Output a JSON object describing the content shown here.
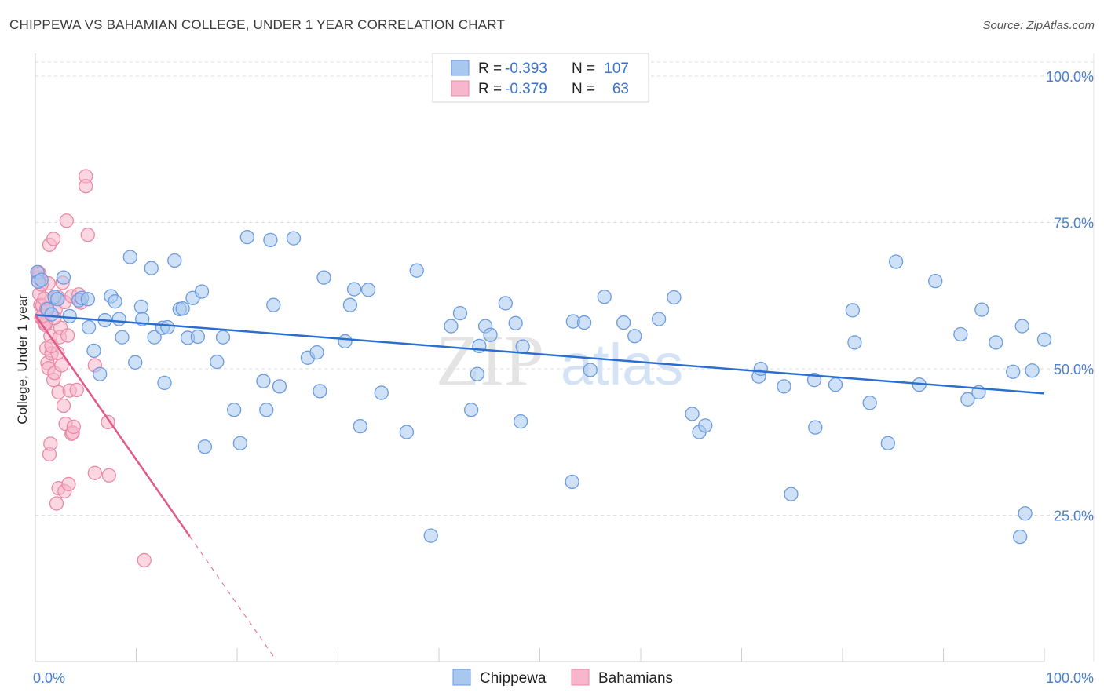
{
  "title": "CHIPPEWA VS BAHAMIAN COLLEGE, UNDER 1 YEAR CORRELATION CHART",
  "source": "Source: ZipAtlas.com",
  "watermark": {
    "zip": "ZIP",
    "atlas": "atlas"
  },
  "colors": {
    "chippewa_fill": "#a8c8f0",
    "chippewa_stroke": "#6b9be0",
    "chippewa_line": "#2a6fd0",
    "bahamian_fill": "#f7b6cb",
    "bahamian_stroke": "#ea89a8",
    "bahamian_line": "#e05a8a",
    "grid": "#dedede",
    "axis_label": "#4a7fd0"
  },
  "legend": [
    {
      "r_label": "R =",
      "r": "-0.393",
      "n_label": "N =",
      "n": "107"
    },
    {
      "r_label": "R =",
      "r": "-0.379",
      "n_label": "N =",
      "n": "63"
    }
  ],
  "chart_data": {
    "type": "scatter",
    "title": "CHIPPEWA VS BAHAMIAN COLLEGE, UNDER 1 YEAR CORRELATION CHART",
    "xlabel": "",
    "ylabel": "College, Under 1 year",
    "xlim": [
      0,
      100
    ],
    "ylim": [
      0,
      100
    ],
    "x_tick_labels": [
      "0.0%",
      "100.0%"
    ],
    "y_ticks": [
      25,
      50,
      75,
      100
    ],
    "y_tick_labels": [
      "25.0%",
      "50.0%",
      "75.0%",
      "100.0%"
    ],
    "grid": true,
    "series": [
      {
        "name": "Chippewa",
        "trend": {
          "x": [
            0,
            100
          ],
          "y": [
            59.2,
            45.8
          ],
          "dashed_x": null
        },
        "points": [
          [
            0.2,
            66.5
          ],
          [
            0.3,
            64.9
          ],
          [
            0.6,
            65.2
          ],
          [
            1.2,
            60.2
          ],
          [
            1.6,
            59.3
          ],
          [
            1.9,
            62.3
          ],
          [
            2.2,
            61.9
          ],
          [
            2.8,
            65.6
          ],
          [
            3.4,
            59
          ],
          [
            4.3,
            61.7
          ],
          [
            4.6,
            62.1
          ],
          [
            5.2,
            61.9
          ],
          [
            5.3,
            57.1
          ],
          [
            5.8,
            53.1
          ],
          [
            6.4,
            49.1
          ],
          [
            6.9,
            58.3
          ],
          [
            7.5,
            62.4
          ],
          [
            7.9,
            61.5
          ],
          [
            8.3,
            58.5
          ],
          [
            8.6,
            55.4
          ],
          [
            9.4,
            69.1
          ],
          [
            9.9,
            51.1
          ],
          [
            10.5,
            60.6
          ],
          [
            10.6,
            58.5
          ],
          [
            11.5,
            67.2
          ],
          [
            11.8,
            55.4
          ],
          [
            12.6,
            57
          ],
          [
            12.8,
            47.6
          ],
          [
            13.1,
            57.1
          ],
          [
            13.8,
            68.5
          ],
          [
            14.3,
            60.2
          ],
          [
            14.6,
            60.3
          ],
          [
            15.1,
            55.3
          ],
          [
            15.6,
            62.1
          ],
          [
            16.1,
            55.5
          ],
          [
            16.5,
            63.2
          ],
          [
            16.8,
            36.7
          ],
          [
            18,
            51.2
          ],
          [
            18.6,
            55.4
          ],
          [
            19.7,
            43
          ],
          [
            20.3,
            37.3
          ],
          [
            21,
            72.5
          ],
          [
            22.6,
            47.9
          ],
          [
            22.9,
            43
          ],
          [
            23.3,
            72
          ],
          [
            23.6,
            60.9
          ],
          [
            24.2,
            47
          ],
          [
            25.6,
            72.3
          ],
          [
            27,
            51.9
          ],
          [
            27.9,
            52.8
          ],
          [
            28.2,
            46.2
          ],
          [
            28.6,
            65.6
          ],
          [
            30.7,
            54.7
          ],
          [
            31.2,
            60.9
          ],
          [
            31.6,
            63.6
          ],
          [
            32.2,
            40.2
          ],
          [
            33,
            63.5
          ],
          [
            34.3,
            45.9
          ],
          [
            36.8,
            39.2
          ],
          [
            37.8,
            66.8
          ],
          [
            39.2,
            21.5
          ],
          [
            41.2,
            57.3
          ],
          [
            42.1,
            59.5
          ],
          [
            43.2,
            43
          ],
          [
            43.8,
            49.1
          ],
          [
            44,
            53.9
          ],
          [
            44.6,
            57.3
          ],
          [
            45.1,
            55.8
          ],
          [
            46.6,
            61.2
          ],
          [
            47.6,
            57.8
          ],
          [
            48.1,
            41
          ],
          [
            48.3,
            53.8
          ],
          [
            53.2,
            30.7
          ],
          [
            53.3,
            58.1
          ],
          [
            54.4,
            57.9
          ],
          [
            55,
            49.8
          ],
          [
            56.4,
            62.3
          ],
          [
            58.3,
            57.9
          ],
          [
            59.4,
            55.6
          ],
          [
            61.8,
            58.5
          ],
          [
            63.3,
            62.2
          ],
          [
            65.1,
            42.3
          ],
          [
            65.8,
            39.2
          ],
          [
            66.4,
            40.3
          ],
          [
            71.7,
            48.7
          ],
          [
            71.9,
            50
          ],
          [
            74.2,
            47
          ],
          [
            74.9,
            28.6
          ],
          [
            77.2,
            48.1
          ],
          [
            77.3,
            40
          ],
          [
            79.3,
            47.3
          ],
          [
            81,
            60
          ],
          [
            81.2,
            54.5
          ],
          [
            82.7,
            44.2
          ],
          [
            84.5,
            37.3
          ],
          [
            85.3,
            68.3
          ],
          [
            87.6,
            47.3
          ],
          [
            89.2,
            65
          ],
          [
            91.7,
            55.9
          ],
          [
            92.4,
            44.8
          ],
          [
            93.5,
            46
          ],
          [
            93.8,
            60.1
          ],
          [
            95.2,
            54.5
          ],
          [
            96.9,
            49.5
          ],
          [
            97.8,
            57.3
          ],
          [
            98.8,
            49.7
          ],
          [
            98.1,
            25.3
          ],
          [
            97.6,
            21.3
          ],
          [
            100,
            55
          ]
        ]
      },
      {
        "name": "Bahamians",
        "trend": {
          "x": [
            0,
            15.3
          ],
          "y": [
            59.2,
            21.4
          ],
          "dashed_x": [
            15.3,
            23.8
          ]
        },
        "points": [
          [
            0.3,
            66.5
          ],
          [
            0.3,
            65.6
          ],
          [
            0.4,
            62.8
          ],
          [
            0.5,
            60.9
          ],
          [
            0.6,
            58.7
          ],
          [
            0.7,
            60.8
          ],
          [
            0.8,
            58.3
          ],
          [
            0.9,
            58
          ],
          [
            1,
            57.5
          ],
          [
            1.1,
            53.5
          ],
          [
            1.2,
            51
          ],
          [
            1.3,
            50.1
          ],
          [
            1.3,
            64.6
          ],
          [
            1.4,
            35.4
          ],
          [
            1.4,
            71.2
          ],
          [
            1.5,
            55.6
          ],
          [
            1.5,
            37.2
          ],
          [
            1.6,
            52.6
          ],
          [
            1.7,
            62
          ],
          [
            1.8,
            48.1
          ],
          [
            1.8,
            72.2
          ],
          [
            1.9,
            49.3
          ],
          [
            2,
            60.1
          ],
          [
            2.1,
            27
          ],
          [
            2.2,
            52.7
          ],
          [
            2.2,
            62.3
          ],
          [
            2.3,
            29.6
          ],
          [
            2.3,
            46
          ],
          [
            2.4,
            55.4
          ],
          [
            2.6,
            50.6
          ],
          [
            2.7,
            64.7
          ],
          [
            2.8,
            43.7
          ],
          [
            2.9,
            29.1
          ],
          [
            2.9,
            61.4
          ],
          [
            3,
            40.6
          ],
          [
            3.1,
            75.3
          ],
          [
            3.3,
            30.3
          ],
          [
            3.4,
            46.3
          ],
          [
            3.6,
            38.9
          ],
          [
            3.6,
            62.4
          ],
          [
            3.7,
            39.1
          ],
          [
            3.8,
            40.1
          ],
          [
            4.1,
            46.4
          ],
          [
            4.3,
            62.7
          ],
          [
            4.5,
            61.3
          ],
          [
            5,
            82.9
          ],
          [
            5,
            81.2
          ],
          [
            5.2,
            72.9
          ],
          [
            5.9,
            50.6
          ],
          [
            5.9,
            32.2
          ],
          [
            7.3,
            31.8
          ],
          [
            7.2,
            40.9
          ],
          [
            10.8,
            17.3
          ],
          [
            1,
            57.8
          ],
          [
            0.7,
            59
          ],
          [
            1.1,
            60.3
          ],
          [
            0.6,
            64.4
          ],
          [
            0.9,
            62
          ],
          [
            1.6,
            53.9
          ],
          [
            0.4,
            66.3
          ],
          [
            2.5,
            57
          ],
          [
            1.9,
            58.7
          ],
          [
            3.2,
            55.7
          ]
        ]
      }
    ]
  }
}
